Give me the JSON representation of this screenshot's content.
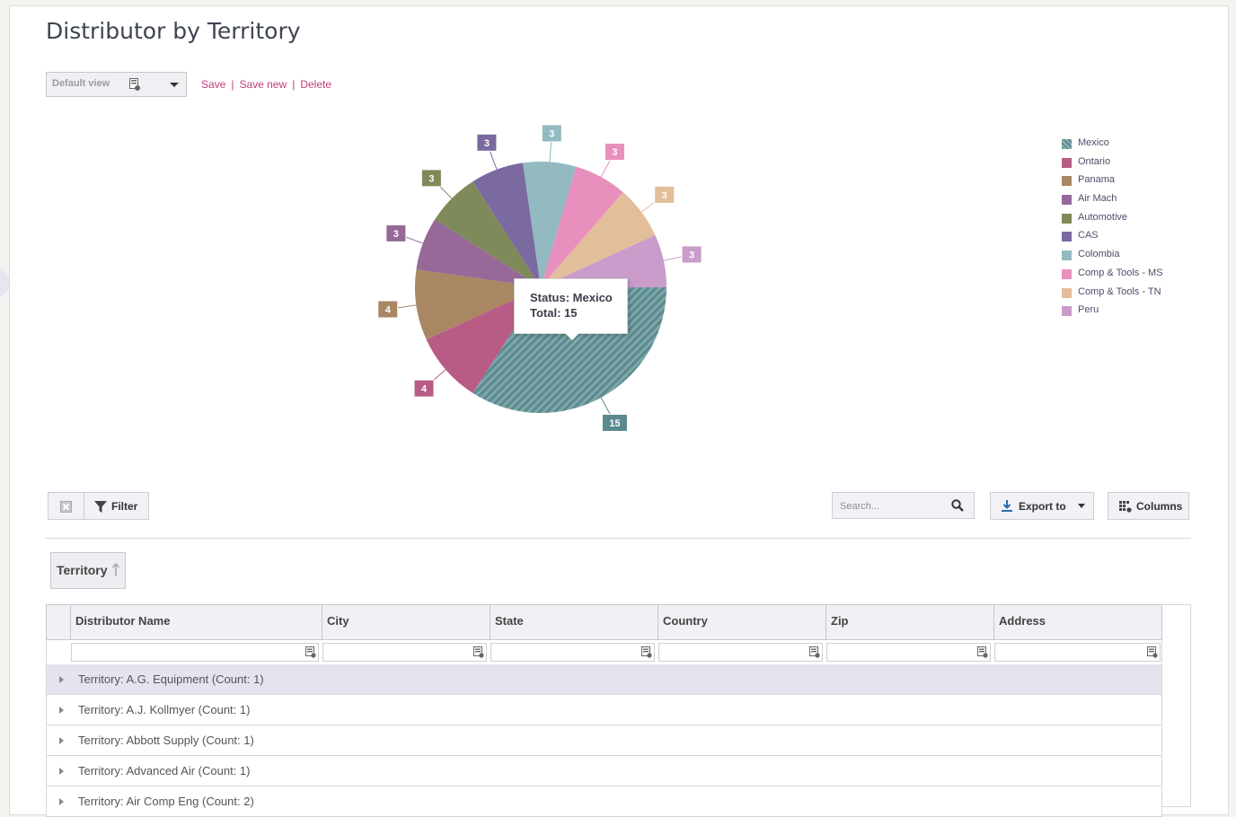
{
  "page": {
    "title": "Distributor by Territory"
  },
  "view": {
    "selected": "Default view",
    "save": "Save",
    "save_new": "Save new",
    "delete": "Delete"
  },
  "chart_data": {
    "type": "pie",
    "slices": [
      {
        "label": "Mexico",
        "value": 15,
        "color": "#5b8a8e",
        "pattern": "hatched"
      },
      {
        "label": "Ontario",
        "value": 4,
        "color": "#b85c86"
      },
      {
        "label": "Panama",
        "value": 4,
        "color": "#a98763"
      },
      {
        "label": "Air Mach",
        "value": 3,
        "color": "#966998"
      },
      {
        "label": "Automotive",
        "value": 3,
        "color": "#7f8a5a"
      },
      {
        "label": "CAS",
        "value": 3,
        "color": "#7b6aa0"
      },
      {
        "label": "Colombia",
        "value": 3,
        "color": "#92bac0"
      },
      {
        "label": "Comp & Tools - MS",
        "value": 3,
        "color": "#e98fbd"
      },
      {
        "label": "Comp & Tools - TN",
        "value": 3,
        "color": "#e3be9a"
      },
      {
        "label": "Peru",
        "value": 3,
        "color": "#c99ccb"
      }
    ],
    "tooltip": {
      "status": "Status: Mexico",
      "total": "Total: 15"
    }
  },
  "toolbar": {
    "filter": "Filter",
    "search_placeholder": "Search...",
    "export": "Export to",
    "columns": "Columns"
  },
  "grouping": {
    "label": "Territory"
  },
  "table": {
    "columns": [
      "Distributor Name",
      "City",
      "State",
      "Country",
      "Zip",
      "Address"
    ],
    "groups": [
      "Territory: A.G. Equipment (Count: 1)",
      "Territory: A.J. Kollmyer (Count: 1)",
      "Territory: Abbott Supply (Count: 1)",
      "Territory: Advanced Air (Count: 1)",
      "Territory: Air Comp Eng (Count: 2)"
    ]
  }
}
